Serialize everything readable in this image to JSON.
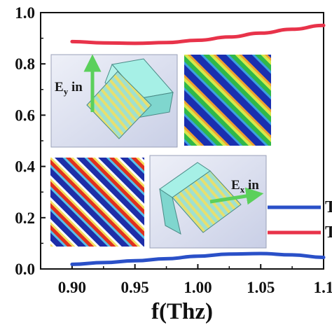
{
  "chart_data": {
    "type": "line",
    "xlabel": "f(Thz)",
    "ylabel": "",
    "xlim": [
      0.875,
      1.1
    ],
    "ylim": [
      0.0,
      1.0
    ],
    "x_ticks": [
      0.9,
      0.95,
      1.0,
      1.05,
      1.1
    ],
    "x_tick_labels": [
      "0.90",
      "0.95",
      "1.00",
      "1.05",
      "1.1"
    ],
    "y_ticks": [
      0.0,
      0.2,
      0.4,
      0.6,
      0.8,
      1.0
    ],
    "y_tick_labels": [
      "0.0",
      "0.2",
      "0.4",
      "0.6",
      "0.8",
      "1.0"
    ],
    "legend_position": "right",
    "legend_labels": [
      "T",
      "T"
    ],
    "series": [
      {
        "color": "#e8334a",
        "x": [
          0.9,
          0.925,
          0.95,
          0.975,
          1.0,
          1.025,
          1.05,
          1.075,
          1.1
        ],
        "y": [
          0.887,
          0.882,
          0.88,
          0.883,
          0.892,
          0.905,
          0.92,
          0.935,
          0.95
        ]
      },
      {
        "color": "#2a50c8",
        "x": [
          0.9,
          0.925,
          0.95,
          0.975,
          1.0,
          1.025,
          1.05,
          1.075,
          1.1
        ],
        "y": [
          0.018,
          0.025,
          0.032,
          0.04,
          0.05,
          0.058,
          0.06,
          0.055,
          0.045
        ]
      }
    ],
    "insets": [
      {
        "label_main": "E",
        "label_sub": "y",
        "label_rest": " in"
      },
      {
        "label_main": "E",
        "label_sub": "x",
        "label_rest": " in"
      }
    ]
  }
}
